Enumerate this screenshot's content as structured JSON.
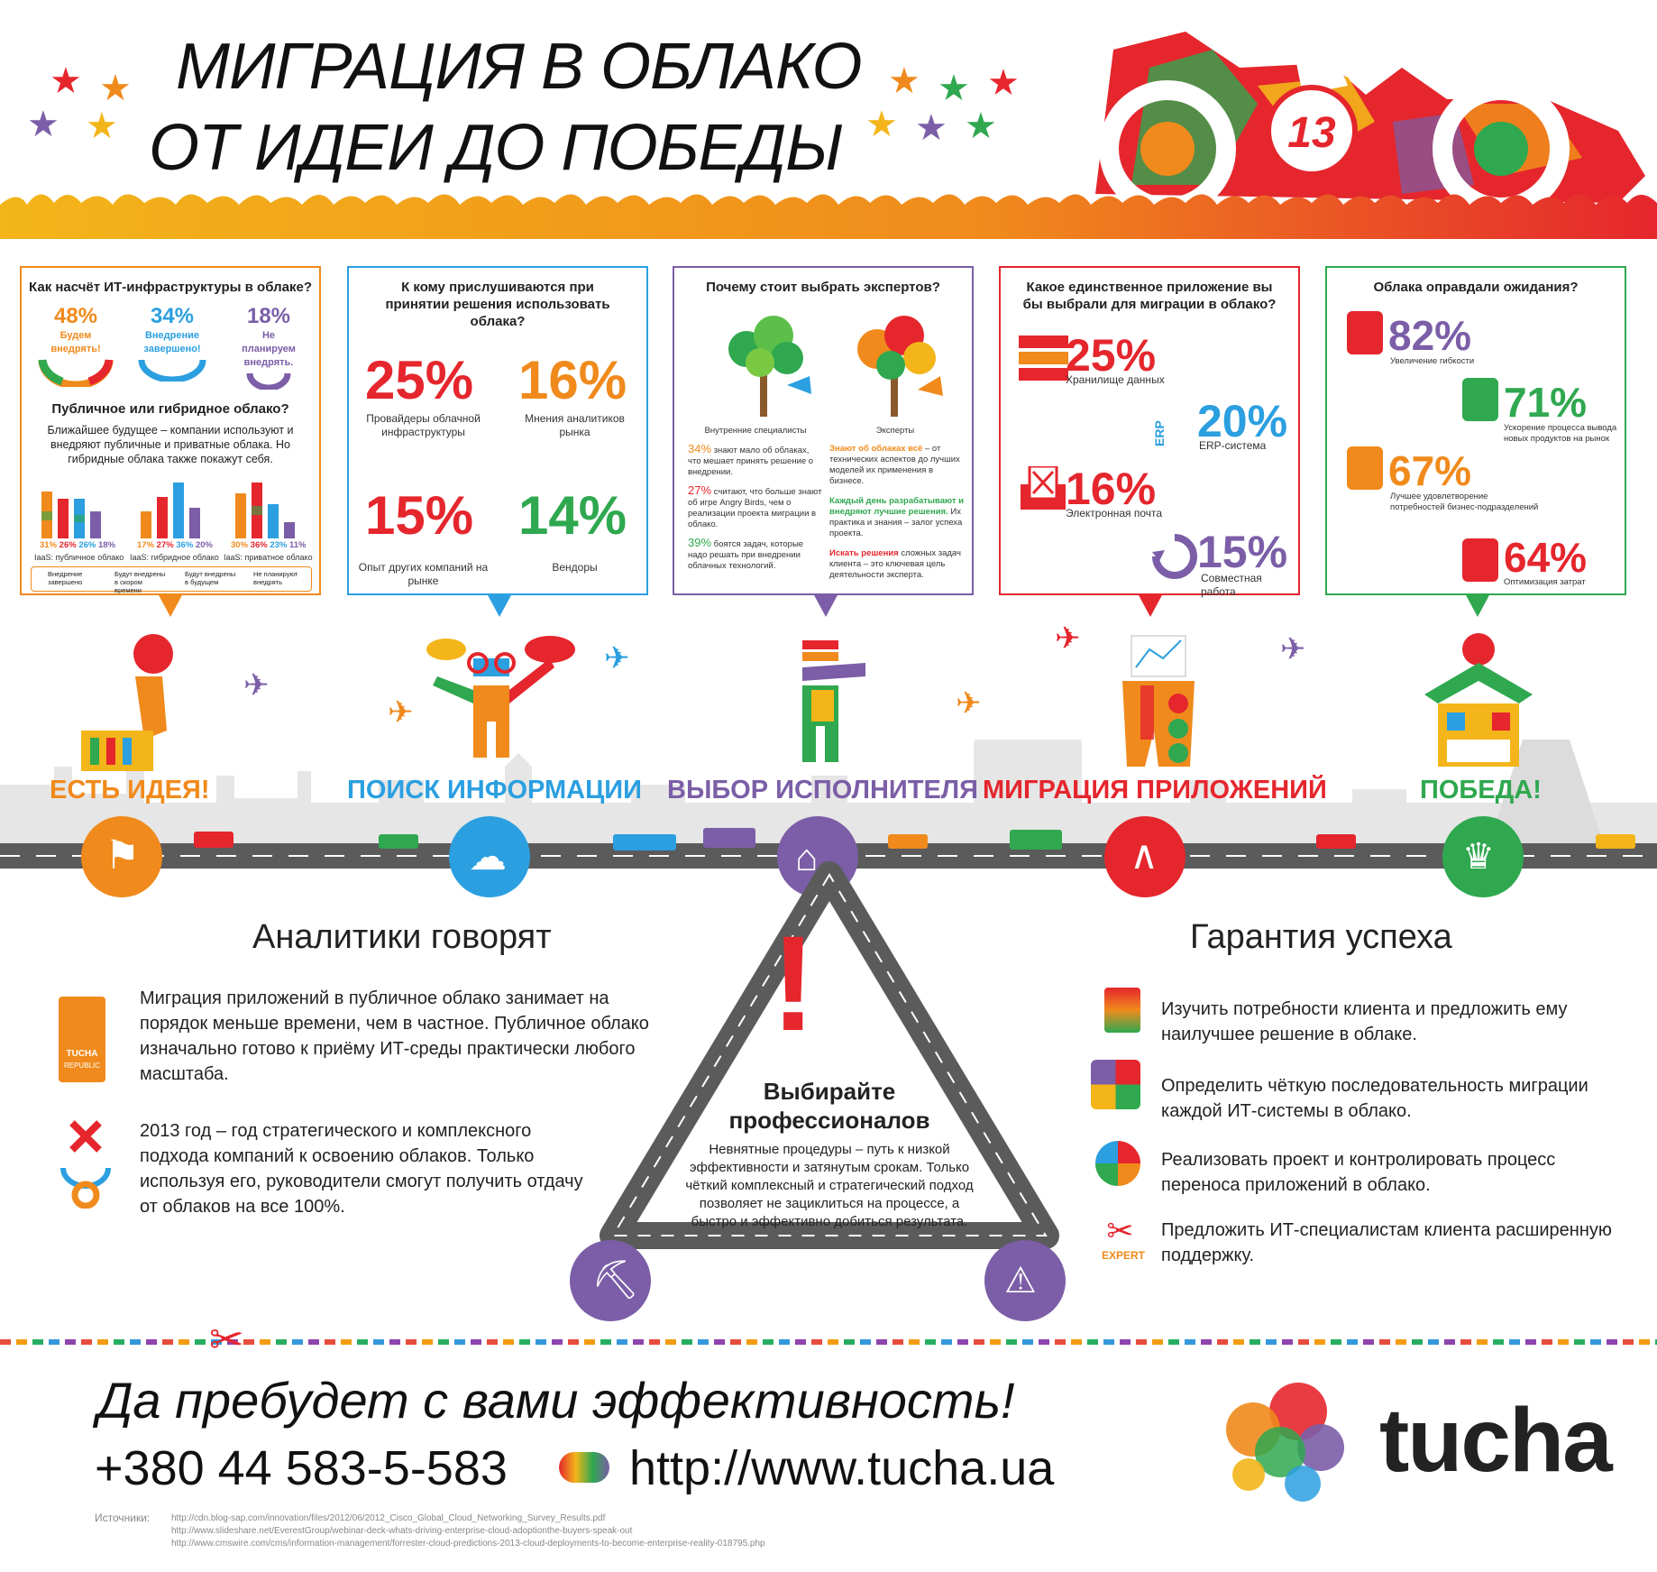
{
  "header": {
    "title_line1": "МИГРАЦИЯ В ОБЛАКО",
    "title_line2": "ОТ ИДЕИ ДО ПОБЕДЫ",
    "car_number": "13"
  },
  "panels": [
    {
      "color": "#f08a1c",
      "title": "Как насчёт ИТ-инфраструктуры в облаке?",
      "stats": [
        {
          "value": "48%",
          "label": "Будем внедрять!",
          "color": "#f08a1c"
        },
        {
          "value": "34%",
          "label": "Внедрение завершено!",
          "color": "#2b9fe0"
        },
        {
          "value": "18%",
          "label": "Не планируем внедрять.",
          "color": "#7b5ea7"
        }
      ],
      "subtitle": "Публичное или гибридное облако?",
      "text": "Ближайшее будущее – компании используют и внедряют публичные и приватные облака. Но гибридные облака также покажут себя.",
      "bar_groups": [
        {
          "label": "IaaS: публичное облако",
          "values": [
            "31%",
            "26%",
            "26%",
            "18%"
          ]
        },
        {
          "label": "IaaS: гибридное облако",
          "values": [
            "17%",
            "27%",
            "36%",
            "20%"
          ]
        },
        {
          "label": "IaaS: приватное облако",
          "values": [
            "30%",
            "36%",
            "23%",
            "11%"
          ]
        }
      ],
      "legend": [
        "Внедрение завершено",
        "Будут внедрены в скором времени",
        "Будут внедрены в будущем",
        "Не планируют внедрять"
      ]
    },
    {
      "color": "#2b9fe0",
      "title": "К кому прислушиваются при принятии решения использовать облака?",
      "stats": [
        {
          "value": "25%",
          "label": "Провайдеры облачной инфраструктуры"
        },
        {
          "value": "16%",
          "label": "Мнения аналитиков рынка"
        },
        {
          "value": "15%",
          "label": "Опыт других компаний на рынке"
        },
        {
          "value": "14%",
          "label": "Вендоры"
        }
      ]
    },
    {
      "color": "#7b5ea7",
      "title": "Почему стоит выбрать экспертов?",
      "left_caption": "Внутренние специалисты",
      "right_caption": "Эксперты",
      "left_items": [
        {
          "pct": "34%",
          "text": "знают мало об облаках, что мешает принять решение о внедрении."
        },
        {
          "pct": "27%",
          "text": "считают, что больше знают об игре Angry Birds, чем о реализации проекта миграции в облако."
        },
        {
          "pct": "39%",
          "text": "боятся задач, которые надо решать при внедрении облачных технологий."
        }
      ],
      "right_items": [
        {
          "lead": "Знают об облаках всё",
          "text": " – от технических аспектов до лучших моделей их применения в бизнесе."
        },
        {
          "lead": "Каждый день разрабатывают и внедряют лучшие решения.",
          "text": " Их практика и знания – залог успеха проекта."
        },
        {
          "lead": "Искать решения",
          "text": " сложных задач клиента – это ключевая цель деятельности эксперта."
        }
      ]
    },
    {
      "color": "#e5262d",
      "title": "Какое единственное приложение вы бы выбрали для миграции в облако?",
      "stats": [
        {
          "value": "25%",
          "label": "Хранилище данных"
        },
        {
          "value": "20%",
          "label": "ERP-система"
        },
        {
          "value": "16%",
          "label": "Электронная почта"
        },
        {
          "value": "15%",
          "label": "Совместная работа"
        }
      ],
      "erp_icon": "ERP"
    },
    {
      "color": "#2fa84f",
      "title": "Облака оправдали ожидания?",
      "stats": [
        {
          "value": "82%",
          "label": "Увеличение гибкости"
        },
        {
          "value": "71%",
          "label": "Ускорение процесса вывода новых продуктов на рынок"
        },
        {
          "value": "67%",
          "label": "Лучшее удовлетворение потребностей бизнес-подразделений"
        },
        {
          "value": "64%",
          "label": "Оптимизация затрат"
        }
      ]
    }
  ],
  "stages": [
    {
      "label": "ЕСТЬ ИДЕЯ!",
      "color": "#f08a1c",
      "icon": "flag-icon"
    },
    {
      "label": "ПОИСК ИНФОРМАЦИИ",
      "color": "#2b9fe0",
      "icon": "cloud-search-icon"
    },
    {
      "label": "ВЫБОР ИСПОЛНИТЕЛЯ",
      "color": "#7b5ea7",
      "icon": "graduation-cap-icon"
    },
    {
      "label": "МИГРАЦИЯ ПРИЛОЖЕНИЙ",
      "color": "#e5262d",
      "icon": "compass-icon"
    },
    {
      "label": "ПОБЕДА!",
      "color": "#2fa84f",
      "icon": "crown-icon"
    }
  ],
  "analysts": {
    "title": "Аналитики говорят",
    "item1": "Миграция приложений в публичное облако занимает на порядок меньше времени, чем в частное. Публичное облако изначально готово к приёму ИТ-среды практически любого масштаба.",
    "item2": "2013 год – год стратегического и комплексного подхода компаний к освоению облаков. Только используя его, руководители смогут получить отдачу от облаков на все 100%.",
    "badge_line1": "TUCHA",
    "badge_line2": "REPUBLIC"
  },
  "triangle": {
    "title_line1": "Выбирайте",
    "title_line2": "профессионалов",
    "text": "Невнятные процедуры – путь к низкой эффективности и затянутым срокам. Только чёткий комплексный и стратегический подход позволяет не зациклиться на процессе, а быстро и эффективно добиться результата.",
    "exclamation": "!"
  },
  "guarantee": {
    "title": "Гарантия успеха",
    "items": [
      "Изучить потребности клиента и предложить ему наилучшее решение в облаке.",
      "Определить чёткую последовательность миграции каждой ИТ-системы в облако.",
      "Реализовать проект и контролировать процесс переноса приложений в облако.",
      "Предложить ИТ-специалистам клиента расширенную поддержку."
    ],
    "expert_label": "EXPERT"
  },
  "footer": {
    "slogan": "Да пребудет с вами эффективность!",
    "phone": "+380 44 583-5-583",
    "url": "http://www.tucha.ua",
    "brand": "tucha",
    "sources_label": "Источники:",
    "sources": [
      "http://cdn.blog-sap.com/innovation/files/2012/06/2012_Cisco_Global_Cloud_Networking_Survey_Results.pdf",
      "http://www.slideshare.net/EverestGroup/webinar-deck-whats-driving-enterprise-cloud-adoptionthe-buyers-speak-out",
      "http://www.cmswire.com/cms/information-management/forrester-cloud-predictions-2013-cloud-deployments-to-become-enterprise-reality-018795.php"
    ]
  }
}
